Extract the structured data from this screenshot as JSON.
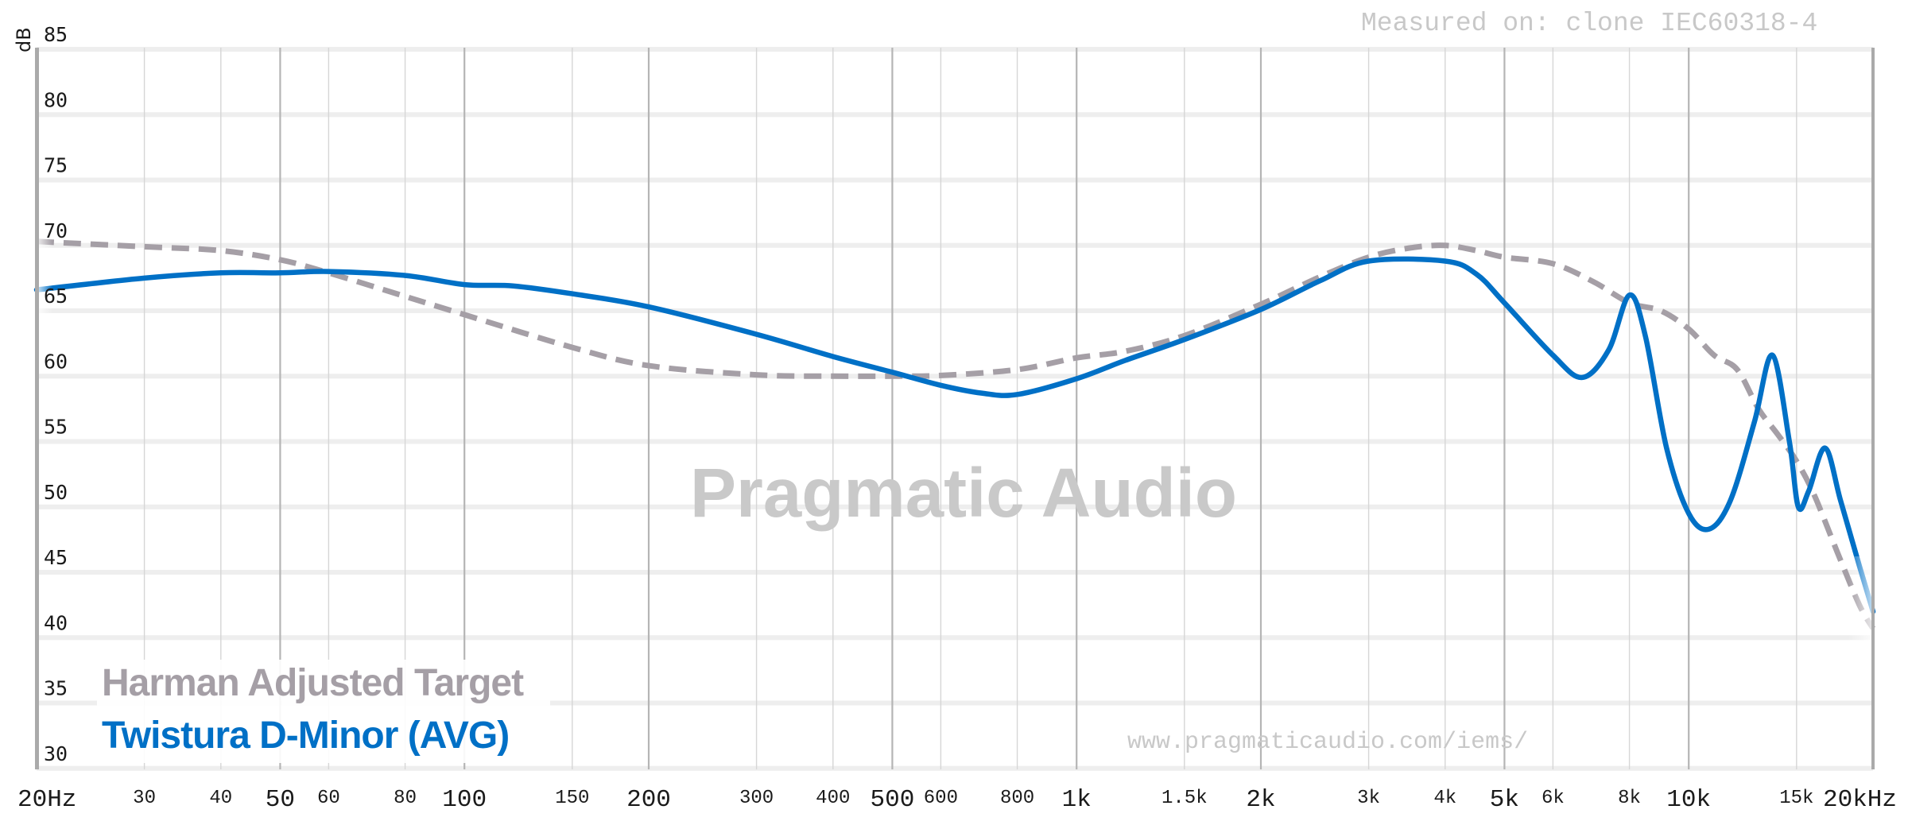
{
  "header": {
    "measured_on": "Measured on: clone IEC60318-4",
    "y_unit_label": "dB"
  },
  "watermark": {
    "brand": "Pragmatic Audio",
    "url": "www.pragmaticaudio.com/iems/"
  },
  "legend": {
    "items": [
      {
        "label": "Harman Adjusted Target",
        "color": "#a59fa6",
        "style": "dashed"
      },
      {
        "label": "Twistura D-Minor (AVG)",
        "color": "#0070c6",
        "style": "solid"
      }
    ]
  },
  "colors": {
    "target": "#a59fa6",
    "measurement": "#0070c6",
    "axis": "#aaaaaa",
    "grid_major": "#b5b5b5",
    "grid_minor": "#d6d6d6",
    "grid_h": "#eeeeee"
  },
  "chart_data": {
    "type": "line",
    "title": "",
    "xlabel": "",
    "ylabel": "dB",
    "xscale": "log",
    "xlim": [
      20,
      20000
    ],
    "ylim": [
      30,
      85
    ],
    "grid": true,
    "legend_position": "lower-left",
    "y_ticks": [
      85,
      80,
      75,
      70,
      65,
      60,
      55,
      50,
      45,
      40,
      35,
      30
    ],
    "x_ticks": [
      {
        "value": 20,
        "label": "20Hz",
        "major": true
      },
      {
        "value": 30,
        "label": "30",
        "major": false
      },
      {
        "value": 40,
        "label": "40",
        "major": false
      },
      {
        "value": 50,
        "label": "50",
        "major": true
      },
      {
        "value": 60,
        "label": "60",
        "major": false
      },
      {
        "value": 80,
        "label": "80",
        "major": false
      },
      {
        "value": 100,
        "label": "100",
        "major": true
      },
      {
        "value": 150,
        "label": "150",
        "major": false
      },
      {
        "value": 200,
        "label": "200",
        "major": true
      },
      {
        "value": 300,
        "label": "300",
        "major": false
      },
      {
        "value": 400,
        "label": "400",
        "major": false
      },
      {
        "value": 500,
        "label": "500",
        "major": true
      },
      {
        "value": 600,
        "label": "600",
        "major": false
      },
      {
        "value": 800,
        "label": "800",
        "major": false
      },
      {
        "value": 1000,
        "label": "1k",
        "major": true
      },
      {
        "value": 1500,
        "label": "1.5k",
        "major": false
      },
      {
        "value": 2000,
        "label": "2k",
        "major": true
      },
      {
        "value": 3000,
        "label": "3k",
        "major": false
      },
      {
        "value": 4000,
        "label": "4k",
        "major": false
      },
      {
        "value": 5000,
        "label": "5k",
        "major": true
      },
      {
        "value": 6000,
        "label": "6k",
        "major": false
      },
      {
        "value": 8000,
        "label": "8k",
        "major": false
      },
      {
        "value": 10000,
        "label": "10k",
        "major": true
      },
      {
        "value": 15000,
        "label": "15k",
        "major": false
      },
      {
        "value": 20000,
        "label": "20kHz",
        "major": true
      }
    ],
    "series": [
      {
        "name": "Harman Adjusted Target",
        "style": "dashed",
        "color": "#a59fa6",
        "points": [
          [
            20,
            70.3
          ],
          [
            30,
            69.9
          ],
          [
            40,
            69.6
          ],
          [
            50,
            68.9
          ],
          [
            60,
            67.9
          ],
          [
            80,
            66.1
          ],
          [
            100,
            64.7
          ],
          [
            150,
            62.2
          ],
          [
            200,
            60.8
          ],
          [
            300,
            60.1
          ],
          [
            400,
            60.0
          ],
          [
            500,
            60.0
          ],
          [
            600,
            60.05
          ],
          [
            800,
            60.5
          ],
          [
            1000,
            61.4
          ],
          [
            1200,
            61.9
          ],
          [
            1500,
            63.1
          ],
          [
            2000,
            65.5
          ],
          [
            2500,
            67.6
          ],
          [
            3000,
            69.1
          ],
          [
            3500,
            69.8
          ],
          [
            4000,
            70.0
          ],
          [
            4500,
            69.6
          ],
          [
            5000,
            69.1
          ],
          [
            6000,
            68.6
          ],
          [
            7000,
            67.2
          ],
          [
            8000,
            65.6
          ],
          [
            9000,
            65.0
          ],
          [
            10000,
            63.6
          ],
          [
            11000,
            61.6
          ],
          [
            12000,
            60.5
          ],
          [
            13000,
            57.5
          ],
          [
            14000,
            55.5
          ],
          [
            15000,
            53.5
          ],
          [
            16000,
            51.0
          ],
          [
            17500,
            46.5
          ],
          [
            19000,
            42.5
          ],
          [
            20000,
            40.7
          ]
        ]
      },
      {
        "name": "Twistura D-Minor (AVG)",
        "style": "solid",
        "color": "#0070c6",
        "points": [
          [
            20,
            66.6
          ],
          [
            30,
            67.5
          ],
          [
            40,
            67.9
          ],
          [
            50,
            67.9
          ],
          [
            60,
            68.0
          ],
          [
            80,
            67.7
          ],
          [
            100,
            67.0
          ],
          [
            120,
            66.9
          ],
          [
            150,
            66.3
          ],
          [
            200,
            65.3
          ],
          [
            300,
            63.2
          ],
          [
            400,
            61.5
          ],
          [
            500,
            60.3
          ],
          [
            600,
            59.3
          ],
          [
            700,
            58.7
          ],
          [
            800,
            58.6
          ],
          [
            1000,
            59.8
          ],
          [
            1200,
            61.2
          ],
          [
            1500,
            62.8
          ],
          [
            2000,
            65.1
          ],
          [
            2500,
            67.3
          ],
          [
            3000,
            68.8
          ],
          [
            4000,
            68.8
          ],
          [
            4500,
            67.8
          ],
          [
            5000,
            65.6
          ],
          [
            6000,
            61.6
          ],
          [
            6700,
            59.9
          ],
          [
            7400,
            62.0
          ],
          [
            8000,
            66.2
          ],
          [
            8500,
            63.0
          ],
          [
            9200,
            54.5
          ],
          [
            10000,
            49.5
          ],
          [
            10800,
            48.3
          ],
          [
            11700,
            50.5
          ],
          [
            12800,
            56.5
          ],
          [
            13700,
            61.6
          ],
          [
            14600,
            55.0
          ],
          [
            15100,
            50.0
          ],
          [
            15700,
            51.2
          ],
          [
            16700,
            54.5
          ],
          [
            17700,
            50.5
          ],
          [
            19000,
            45.5
          ],
          [
            20000,
            42.0
          ]
        ]
      }
    ]
  }
}
